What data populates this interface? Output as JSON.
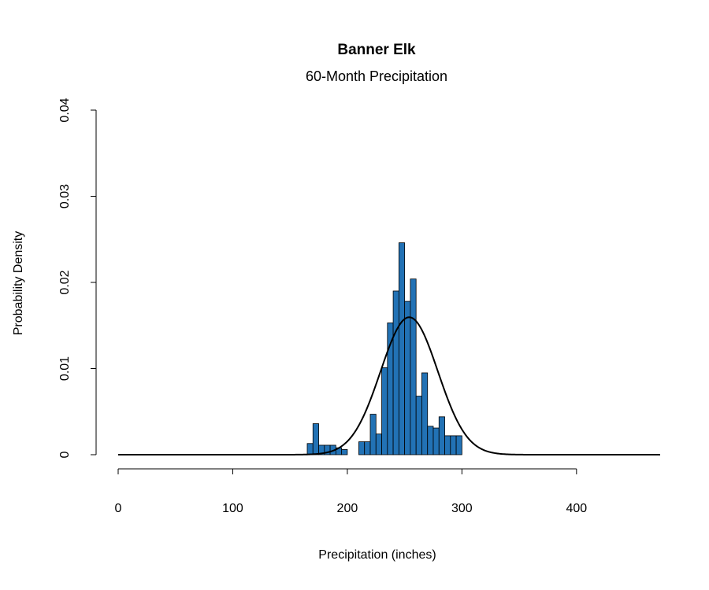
{
  "chart_data": {
    "type": "bar",
    "title": "Banner Elk",
    "subtitle": "60-Month Precipitation",
    "xlabel": "Precipitation (inches)",
    "ylabel": "Probability Density",
    "xlim": [
      0,
      473
    ],
    "ylim": [
      0,
      0.04
    ],
    "x_ticks": [
      0,
      100,
      200,
      300,
      400
    ],
    "x_tick_labels": [
      "0",
      "100",
      "200",
      "300",
      "400"
    ],
    "y_ticks": [
      0,
      0.01,
      0.02,
      0.03,
      0.04
    ],
    "y_tick_labels": [
      "0",
      "0.01",
      "0.02",
      "0.03",
      "0.04"
    ],
    "bin_width": 5,
    "bins": [
      {
        "x0": 165,
        "x1": 170,
        "density": 0.0013
      },
      {
        "x0": 170,
        "x1": 175,
        "density": 0.0036
      },
      {
        "x0": 175,
        "x1": 180,
        "density": 0.0011
      },
      {
        "x0": 180,
        "x1": 185,
        "density": 0.0011
      },
      {
        "x0": 185,
        "x1": 190,
        "density": 0.0011
      },
      {
        "x0": 190,
        "x1": 195,
        "density": 0.0008
      },
      {
        "x0": 195,
        "x1": 200,
        "density": 0.0006
      },
      {
        "x0": 200,
        "x1": 205,
        "density": 0.0
      },
      {
        "x0": 205,
        "x1": 210,
        "density": 0.0
      },
      {
        "x0": 210,
        "x1": 215,
        "density": 0.0015
      },
      {
        "x0": 215,
        "x1": 220,
        "density": 0.0015
      },
      {
        "x0": 220,
        "x1": 225,
        "density": 0.0047
      },
      {
        "x0": 225,
        "x1": 230,
        "density": 0.0024
      },
      {
        "x0": 230,
        "x1": 235,
        "density": 0.0101
      },
      {
        "x0": 235,
        "x1": 240,
        "density": 0.0153
      },
      {
        "x0": 240,
        "x1": 245,
        "density": 0.019
      },
      {
        "x0": 245,
        "x1": 250,
        "density": 0.0246
      },
      {
        "x0": 250,
        "x1": 255,
        "density": 0.0178
      },
      {
        "x0": 255,
        "x1": 260,
        "density": 0.0204
      },
      {
        "x0": 260,
        "x1": 265,
        "density": 0.0068
      },
      {
        "x0": 265,
        "x1": 270,
        "density": 0.0095
      },
      {
        "x0": 270,
        "x1": 275,
        "density": 0.0033
      },
      {
        "x0": 275,
        "x1": 280,
        "density": 0.0031
      },
      {
        "x0": 280,
        "x1": 285,
        "density": 0.0044
      },
      {
        "x0": 285,
        "x1": 290,
        "density": 0.0022
      },
      {
        "x0": 290,
        "x1": 295,
        "density": 0.0022
      },
      {
        "x0": 295,
        "x1": 300,
        "density": 0.0022
      }
    ],
    "normal_curve": {
      "mean": 254,
      "sd": 25,
      "x_range": [
        0,
        473
      ]
    },
    "bar_color": "#2272b5",
    "curve_color": "#000000",
    "grid": false,
    "legend": "none"
  }
}
